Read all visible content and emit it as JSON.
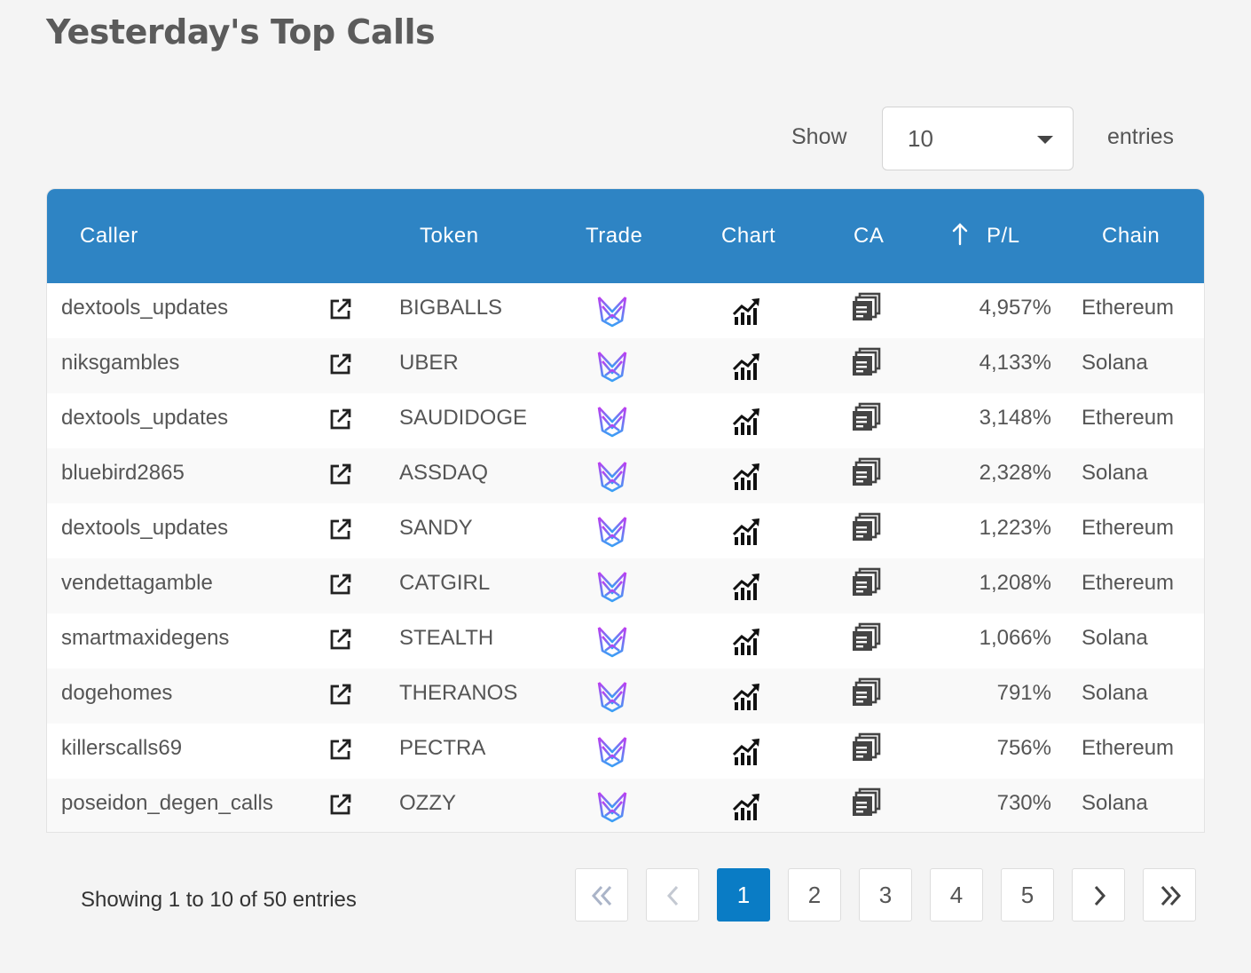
{
  "title": "Yesterday's Top Calls",
  "length_menu": {
    "show_label": "Show",
    "value": "10",
    "entries_label": "entries"
  },
  "columns": {
    "caller": "Caller",
    "token": "Token",
    "trade": "Trade",
    "chart": "Chart",
    "ca": "CA",
    "pl": "P/L",
    "chain": "Chain"
  },
  "sort": {
    "column": "pl",
    "icon": "arrow-up-icon"
  },
  "rows": [
    {
      "caller": "dextools_updates",
      "token": "BIGBALLS",
      "pl": "4,957%",
      "chain": "Ethereum"
    },
    {
      "caller": "niksgambles",
      "token": "UBER",
      "pl": "4,133%",
      "chain": "Solana"
    },
    {
      "caller": "dextools_updates",
      "token": "SAUDIDOGE",
      "pl": "3,148%",
      "chain": "Ethereum"
    },
    {
      "caller": "bluebird2865",
      "token": "ASSDAQ",
      "pl": "2,328%",
      "chain": "Solana"
    },
    {
      "caller": "dextools_updates",
      "token": "SANDY",
      "pl": "1,223%",
      "chain": "Ethereum"
    },
    {
      "caller": "vendettagamble",
      "token": "CATGIRL",
      "pl": "1,208%",
      "chain": "Ethereum"
    },
    {
      "caller": "smartmaxidegens",
      "token": "STEALTH",
      "pl": "1,066%",
      "chain": "Solana"
    },
    {
      "caller": "dogehomes",
      "token": "THERANOS",
      "pl": "791%",
      "chain": "Solana"
    },
    {
      "caller": "killerscalls69",
      "token": "PECTRA",
      "pl": "756%",
      "chain": "Ethereum"
    },
    {
      "caller": "poseidon_degen_calls",
      "token": "OZZY",
      "pl": "730%",
      "chain": "Solana"
    }
  ],
  "row_icons": {
    "link": "external-link-icon",
    "trade": "trade-logo-icon",
    "chart": "chart-icon",
    "ca": "copy-icon"
  },
  "info": "Showing 1 to 10 of 50 entries",
  "pagination": {
    "pages": [
      "1",
      "2",
      "3",
      "4",
      "5"
    ],
    "current": "1"
  },
  "colors": {
    "header": "#2e84c4",
    "active_page": "#0a7cc5"
  }
}
